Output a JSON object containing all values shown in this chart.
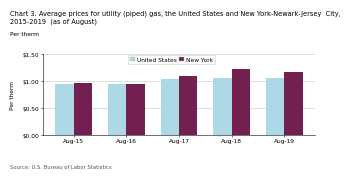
{
  "title_line1": "Chart 3. Average prices for utility (piped) gas, the United States and New York-Newark-Jersey  City,",
  "title_line2": "2015-2019  (as of August)",
  "ylabel": "Per therm",
  "source": "Source: U.S. Bureau of Labor Statistics",
  "categories": [
    "Aug-15",
    "Aug-16",
    "Aug-17",
    "Aug-18",
    "Aug-19"
  ],
  "us_values": [
    0.937,
    0.95,
    1.044,
    1.063,
    1.047
  ],
  "ny_values": [
    0.96,
    0.95,
    1.09,
    1.215,
    1.175
  ],
  "us_color": "#ADD8E6",
  "ny_color": "#722050",
  "ylim": [
    0.0,
    1.5
  ],
  "yticks": [
    0.0,
    0.5,
    1.0,
    1.5
  ],
  "ytick_labels": [
    "$0.00",
    "$0.50",
    "$1.00",
    "$1.50"
  ],
  "bar_width": 0.35,
  "legend_us": "United States",
  "legend_ny": "New York",
  "bg_color": "#ffffff",
  "grid_color": "#d0d0d0",
  "title_fontsize": 4.8,
  "label_fontsize": 4.2,
  "tick_fontsize": 4.2,
  "source_fontsize": 3.8,
  "legend_fontsize": 4.2
}
